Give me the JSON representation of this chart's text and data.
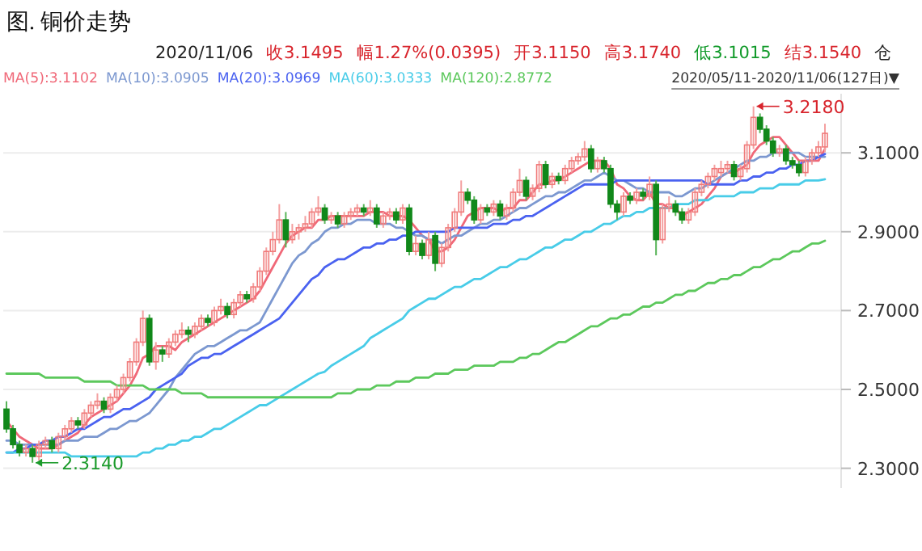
{
  "chart_data": {
    "type": "candlestick",
    "title": "图. 铜价走势",
    "annotations": [
      "2020/11/06",
      "收3.1495",
      "幅1.27%(0.0395)",
      "开3.1150",
      "高3.1740",
      "低3.1015",
      "结3.1540",
      "仓",
      "2020/05/11-2020/11/06(127日)▼",
      {
        "text": "2.3140",
        "y": 2.314
      },
      "3.2180"
    ],
    "categories": [
      null,
      null,
      null,
      null,
      null,
      null,
      null,
      null,
      null,
      null,
      null,
      null,
      null,
      null,
      null,
      null,
      null,
      null,
      null,
      null,
      null,
      null,
      null,
      null,
      null,
      null,
      null,
      null,
      null,
      null,
      null,
      null,
      null,
      null,
      null,
      null,
      null,
      null,
      null,
      null,
      null,
      null,
      null,
      null,
      null,
      null,
      null,
      null,
      null,
      null,
      null,
      null,
      null,
      null,
      null,
      null,
      null,
      null,
      null,
      null,
      null,
      null,
      null,
      null,
      null,
      null,
      null,
      null,
      null,
      null,
      null,
      null,
      null,
      null,
      null,
      null,
      null,
      null,
      null,
      null,
      null,
      null,
      null,
      null,
      null,
      null,
      null,
      null,
      null,
      null,
      null,
      null,
      null,
      null,
      null,
      null,
      null,
      null,
      null,
      null,
      null,
      null,
      null,
      null,
      null,
      null,
      null,
      null,
      null,
      null,
      null,
      null,
      null,
      null,
      null,
      null,
      null,
      null,
      null,
      null,
      null,
      null,
      null,
      null,
      null,
      null,
      null
    ],
    "ohlc": [
      [
        2.45,
        2.47,
        2.39,
        2.4
      ],
      [
        2.4,
        2.41,
        2.35,
        2.36
      ],
      [
        2.36,
        2.37,
        2.33,
        2.34
      ],
      [
        2.34,
        2.36,
        2.33,
        2.35
      ],
      [
        2.35,
        2.36,
        2.314,
        2.33
      ],
      [
        2.33,
        2.37,
        2.32,
        2.36
      ],
      [
        2.36,
        2.38,
        2.35,
        2.37
      ],
      [
        2.37,
        2.38,
        2.34,
        2.35
      ],
      [
        2.35,
        2.39,
        2.34,
        2.38
      ],
      [
        2.38,
        2.41,
        2.37,
        2.4
      ],
      [
        2.4,
        2.43,
        2.39,
        2.42
      ],
      [
        2.42,
        2.43,
        2.4,
        2.41
      ],
      [
        2.41,
        2.45,
        2.4,
        2.44
      ],
      [
        2.44,
        2.47,
        2.43,
        2.46
      ],
      [
        2.46,
        2.49,
        2.45,
        2.47
      ],
      [
        2.47,
        2.48,
        2.44,
        2.45
      ],
      [
        2.45,
        2.49,
        2.44,
        2.48
      ],
      [
        2.48,
        2.51,
        2.47,
        2.5
      ],
      [
        2.5,
        2.54,
        2.49,
        2.53
      ],
      [
        2.53,
        2.58,
        2.52,
        2.57
      ],
      [
        2.57,
        2.63,
        2.56,
        2.62
      ],
      [
        2.62,
        2.7,
        2.61,
        2.68
      ],
      [
        2.68,
        2.69,
        2.56,
        2.57
      ],
      [
        2.57,
        2.62,
        2.55,
        2.6
      ],
      [
        2.6,
        2.61,
        2.57,
        2.59
      ],
      [
        2.59,
        2.63,
        2.58,
        2.62
      ],
      [
        2.62,
        2.65,
        2.61,
        2.64
      ],
      [
        2.64,
        2.67,
        2.63,
        2.65
      ],
      [
        2.65,
        2.66,
        2.62,
        2.64
      ],
      [
        2.64,
        2.67,
        2.63,
        2.66
      ],
      [
        2.66,
        2.69,
        2.65,
        2.68
      ],
      [
        2.68,
        2.69,
        2.66,
        2.67
      ],
      [
        2.67,
        2.71,
        2.66,
        2.7
      ],
      [
        2.7,
        2.73,
        2.69,
        2.71
      ],
      [
        2.71,
        2.72,
        2.68,
        2.69
      ],
      [
        2.69,
        2.73,
        2.68,
        2.72
      ],
      [
        2.72,
        2.75,
        2.71,
        2.74
      ],
      [
        2.74,
        2.75,
        2.72,
        2.73
      ],
      [
        2.73,
        2.77,
        2.72,
        2.76
      ],
      [
        2.76,
        2.81,
        2.75,
        2.8
      ],
      [
        2.8,
        2.86,
        2.79,
        2.85
      ],
      [
        2.85,
        2.9,
        2.84,
        2.88
      ],
      [
        2.88,
        2.97,
        2.87,
        2.93
      ],
      [
        2.93,
        2.95,
        2.86,
        2.88
      ],
      [
        2.88,
        2.92,
        2.87,
        2.9
      ],
      [
        2.9,
        2.92,
        2.88,
        2.91
      ],
      [
        2.91,
        2.94,
        2.9,
        2.92
      ],
      [
        2.92,
        2.96,
        2.91,
        2.95
      ],
      [
        2.95,
        2.99,
        2.94,
        2.96
      ],
      [
        2.96,
        2.97,
        2.92,
        2.93
      ],
      [
        2.93,
        2.95,
        2.92,
        2.94
      ],
      [
        2.94,
        2.95,
        2.91,
        2.92
      ],
      [
        2.92,
        2.95,
        2.91,
        2.94
      ],
      [
        2.94,
        2.96,
        2.93,
        2.95
      ],
      [
        2.95,
        2.97,
        2.94,
        2.96
      ],
      [
        2.96,
        2.97,
        2.94,
        2.95
      ],
      [
        2.95,
        2.98,
        2.94,
        2.96
      ],
      [
        2.96,
        2.97,
        2.91,
        2.92
      ],
      [
        2.92,
        2.95,
        2.91,
        2.94
      ],
      [
        2.94,
        2.96,
        2.93,
        2.95
      ],
      [
        2.95,
        2.96,
        2.92,
        2.93
      ],
      [
        2.93,
        2.97,
        2.92,
        2.96
      ],
      [
        2.96,
        2.97,
        2.84,
        2.85
      ],
      [
        2.85,
        2.89,
        2.84,
        2.87
      ],
      [
        2.87,
        2.88,
        2.83,
        2.84
      ],
      [
        2.84,
        2.9,
        2.83,
        2.88
      ],
      [
        2.89,
        2.9,
        2.8,
        2.82
      ],
      [
        2.82,
        2.87,
        2.81,
        2.86
      ],
      [
        2.86,
        2.92,
        2.85,
        2.91
      ],
      [
        2.91,
        2.96,
        2.9,
        2.95
      ],
      [
        2.95,
        3.03,
        2.94,
        3.0
      ],
      [
        3.0,
        3.01,
        2.97,
        2.98
      ],
      [
        2.98,
        2.99,
        2.92,
        2.93
      ],
      [
        2.93,
        2.97,
        2.92,
        2.96
      ],
      [
        2.96,
        2.97,
        2.94,
        2.95
      ],
      [
        2.95,
        2.98,
        2.94,
        2.97
      ],
      [
        2.97,
        2.98,
        2.93,
        2.94
      ],
      [
        2.94,
        2.97,
        2.93,
        2.96
      ],
      [
        2.96,
        3.01,
        2.95,
        3.0
      ],
      [
        3.0,
        3.06,
        2.99,
        3.03
      ],
      [
        3.03,
        3.04,
        2.98,
        2.99
      ],
      [
        2.99,
        3.02,
        2.98,
        3.01
      ],
      [
        3.01,
        3.08,
        3.0,
        3.07
      ],
      [
        3.07,
        3.08,
        3.01,
        3.02
      ],
      [
        3.02,
        3.05,
        3.01,
        3.04
      ],
      [
        3.04,
        3.05,
        3.02,
        3.03
      ],
      [
        3.03,
        3.07,
        3.02,
        3.06
      ],
      [
        3.06,
        3.09,
        3.05,
        3.08
      ],
      [
        3.08,
        3.1,
        3.07,
        3.09
      ],
      [
        3.09,
        3.13,
        3.08,
        3.11
      ],
      [
        3.11,
        3.12,
        3.05,
        3.06
      ],
      [
        3.06,
        3.09,
        3.05,
        3.08
      ],
      [
        3.08,
        3.09,
        3.05,
        3.06
      ],
      [
        3.06,
        3.07,
        2.96,
        2.97
      ],
      [
        2.97,
        2.98,
        2.93,
        2.95
      ],
      [
        2.95,
        3.0,
        2.94,
        2.99
      ],
      [
        2.99,
        3.0,
        2.97,
        2.98
      ],
      [
        2.98,
        3.01,
        2.97,
        3.0
      ],
      [
        3.0,
        3.01,
        2.98,
        2.99
      ],
      [
        2.99,
        3.04,
        2.98,
        3.02
      ],
      [
        3.02,
        3.03,
        2.84,
        2.88
      ],
      [
        2.88,
        2.97,
        2.87,
        2.96
      ],
      [
        2.96,
        2.99,
        2.95,
        2.97
      ],
      [
        2.97,
        2.98,
        2.94,
        2.95
      ],
      [
        2.95,
        2.96,
        2.92,
        2.93
      ],
      [
        2.93,
        2.96,
        2.92,
        2.95
      ],
      [
        2.95,
        3.01,
        2.94,
        3.0
      ],
      [
        3.0,
        3.03,
        2.99,
        3.02
      ],
      [
        3.02,
        3.05,
        3.01,
        3.04
      ],
      [
        3.04,
        3.07,
        3.03,
        3.06
      ],
      [
        3.05,
        3.08,
        3.04,
        3.06
      ],
      [
        3.06,
        3.08,
        3.05,
        3.07
      ],
      [
        3.07,
        3.08,
        3.03,
        3.04
      ],
      [
        3.04,
        3.07,
        3.03,
        3.06
      ],
      [
        3.06,
        3.13,
        3.05,
        3.12
      ],
      [
        3.12,
        3.218,
        3.11,
        3.19
      ],
      [
        3.19,
        3.2,
        3.15,
        3.16
      ],
      [
        3.16,
        3.17,
        3.12,
        3.13
      ],
      [
        3.13,
        3.14,
        3.09,
        3.1
      ],
      [
        3.1,
        3.12,
        3.09,
        3.11
      ],
      [
        3.11,
        3.12,
        3.07,
        3.08
      ],
      [
        3.08,
        3.09,
        3.06,
        3.07
      ],
      [
        3.07,
        3.08,
        3.04,
        3.05
      ],
      [
        3.05,
        3.09,
        3.04,
        3.08
      ],
      [
        3.08,
        3.11,
        3.07,
        3.1
      ],
      [
        3.1,
        3.13,
        3.09,
        3.115
      ],
      [
        3.115,
        3.174,
        3.1015,
        3.1495
      ]
    ],
    "series": [
      {
        "type": "line",
        "name": "MA(5):3.1102",
        "color": "#f06878",
        "values": [
          2.42,
          2.4,
          2.38,
          2.37,
          2.36,
          2.35,
          2.35,
          2.35,
          2.36,
          2.37,
          2.38,
          2.39,
          2.41,
          2.43,
          2.44,
          2.45,
          2.46,
          2.47,
          2.49,
          2.51,
          2.54,
          2.58,
          2.59,
          2.61,
          2.61,
          2.61,
          2.6,
          2.62,
          2.63,
          2.64,
          2.65,
          2.66,
          2.67,
          2.68,
          2.69,
          2.7,
          2.71,
          2.72,
          2.73,
          2.75,
          2.78,
          2.81,
          2.84,
          2.87,
          2.89,
          2.9,
          2.91,
          2.91,
          2.93,
          2.93,
          2.94,
          2.94,
          2.94,
          2.94,
          2.94,
          2.94,
          2.95,
          2.95,
          2.95,
          2.94,
          2.94,
          2.94,
          2.93,
          2.91,
          2.89,
          2.88,
          2.85,
          2.85,
          2.86,
          2.88,
          2.91,
          2.94,
          2.95,
          2.96,
          2.96,
          2.96,
          2.95,
          2.96,
          2.96,
          2.98,
          2.98,
          3.0,
          3.02,
          3.02,
          3.03,
          3.03,
          3.04,
          3.05,
          3.06,
          3.07,
          3.08,
          3.08,
          3.08,
          3.06,
          3.02,
          3.01,
          2.99,
          2.98,
          2.98,
          3.0,
          2.97,
          2.97,
          2.96,
          2.96,
          2.94,
          2.95,
          2.96,
          2.97,
          2.99,
          3.01,
          3.04,
          3.05,
          3.05,
          3.06,
          3.07,
          3.1,
          3.12,
          3.13,
          3.14,
          3.14,
          3.12,
          3.1,
          3.08,
          3.08,
          3.08,
          3.08,
          3.11
        ]
      },
      {
        "type": "line",
        "name": "MA(10):3.0905",
        "color": "#7c98d0",
        "values": [
          2.37,
          2.37,
          2.36,
          2.36,
          2.36,
          2.36,
          2.36,
          2.36,
          2.36,
          2.37,
          2.37,
          2.37,
          2.38,
          2.38,
          2.38,
          2.39,
          2.4,
          2.4,
          2.41,
          2.42,
          2.42,
          2.43,
          2.44,
          2.46,
          2.48,
          2.5,
          2.53,
          2.55,
          2.57,
          2.59,
          2.6,
          2.61,
          2.61,
          2.62,
          2.63,
          2.64,
          2.65,
          2.65,
          2.66,
          2.67,
          2.7,
          2.73,
          2.76,
          2.79,
          2.82,
          2.84,
          2.85,
          2.87,
          2.88,
          2.9,
          2.91,
          2.91,
          2.92,
          2.92,
          2.93,
          2.93,
          2.93,
          2.92,
          2.92,
          2.92,
          2.91,
          2.91,
          2.9,
          2.89,
          2.89,
          2.88,
          2.88,
          2.87,
          2.88,
          2.89,
          2.89,
          2.9,
          2.91,
          2.92,
          2.92,
          2.93,
          2.93,
          2.94,
          2.95,
          2.96,
          2.96,
          2.97,
          2.98,
          2.99,
          2.99,
          3.0,
          3.0,
          3.01,
          3.02,
          3.03,
          3.03,
          3.04,
          3.05,
          3.04,
          3.03,
          3.03,
          3.02,
          3.01,
          3.01,
          3.0,
          3.0,
          3.0,
          3.0,
          2.99,
          2.99,
          3.0,
          3.01,
          3.01,
          3.02,
          3.03,
          3.04,
          3.05,
          3.06,
          3.07,
          3.08,
          3.08,
          3.09,
          3.09,
          3.1,
          3.1,
          3.1,
          3.1,
          3.1,
          3.09,
          3.09,
          3.09,
          3.09
        ]
      },
      {
        "type": "line",
        "name": "MA(20):3.0969",
        "color": "#4a62f0",
        "values": [
          2.34,
          2.34,
          2.35,
          2.35,
          2.36,
          2.36,
          2.37,
          2.37,
          2.38,
          2.38,
          2.39,
          2.4,
          2.4,
          2.41,
          2.42,
          2.43,
          2.43,
          2.44,
          2.45,
          2.45,
          2.46,
          2.47,
          2.48,
          2.5,
          2.51,
          2.52,
          2.53,
          2.54,
          2.56,
          2.57,
          2.58,
          2.58,
          2.59,
          2.59,
          2.6,
          2.61,
          2.62,
          2.63,
          2.64,
          2.65,
          2.66,
          2.67,
          2.68,
          2.7,
          2.72,
          2.74,
          2.76,
          2.78,
          2.79,
          2.81,
          2.82,
          2.83,
          2.83,
          2.84,
          2.85,
          2.86,
          2.86,
          2.87,
          2.87,
          2.88,
          2.88,
          2.89,
          2.89,
          2.9,
          2.9,
          2.9,
          2.9,
          2.9,
          2.9,
          2.91,
          2.91,
          2.91,
          2.91,
          2.91,
          2.91,
          2.92,
          2.92,
          2.92,
          2.93,
          2.93,
          2.94,
          2.94,
          2.95,
          2.96,
          2.97,
          2.98,
          2.99,
          3.0,
          3.01,
          3.02,
          3.02,
          3.02,
          3.02,
          3.02,
          3.03,
          3.03,
          3.03,
          3.03,
          3.03,
          3.03,
          3.03,
          3.03,
          3.03,
          3.03,
          3.03,
          3.03,
          3.03,
          3.03,
          3.02,
          3.02,
          3.02,
          3.02,
          3.02,
          3.03,
          3.03,
          3.04,
          3.04,
          3.05,
          3.05,
          3.06,
          3.06,
          3.07,
          3.07,
          3.08,
          3.08,
          3.09,
          3.097
        ]
      },
      {
        "type": "line",
        "name": "MA(60):3.0333",
        "color": "#48cce8",
        "values": [
          2.34,
          2.34,
          2.34,
          2.34,
          2.34,
          2.34,
          2.34,
          2.34,
          2.34,
          2.34,
          2.33,
          2.33,
          2.33,
          2.33,
          2.33,
          2.33,
          2.33,
          2.33,
          2.33,
          2.33,
          2.33,
          2.34,
          2.34,
          2.35,
          2.35,
          2.36,
          2.36,
          2.37,
          2.37,
          2.38,
          2.38,
          2.39,
          2.4,
          2.4,
          2.41,
          2.42,
          2.43,
          2.44,
          2.45,
          2.46,
          2.46,
          2.47,
          2.48,
          2.49,
          2.5,
          2.51,
          2.52,
          2.53,
          2.54,
          2.545,
          2.56,
          2.57,
          2.58,
          2.59,
          2.6,
          2.61,
          2.63,
          2.64,
          2.65,
          2.66,
          2.67,
          2.68,
          2.7,
          2.71,
          2.72,
          2.73,
          2.73,
          2.74,
          2.75,
          2.76,
          2.76,
          2.77,
          2.78,
          2.78,
          2.79,
          2.8,
          2.81,
          2.81,
          2.82,
          2.83,
          2.83,
          2.84,
          2.85,
          2.86,
          2.86,
          2.87,
          2.88,
          2.88,
          2.89,
          2.9,
          2.9,
          2.91,
          2.92,
          2.92,
          2.93,
          2.94,
          2.94,
          2.95,
          2.95,
          2.96,
          2.96,
          2.96,
          2.96,
          2.97,
          2.97,
          2.97,
          2.98,
          2.98,
          2.98,
          2.99,
          2.99,
          2.99,
          2.99,
          3.0,
          3.0,
          3.0,
          3.01,
          3.01,
          3.01,
          3.02,
          3.02,
          3.02,
          3.02,
          3.03,
          3.03,
          3.03,
          3.033
        ]
      },
      {
        "type": "line",
        "name": "MA(120):2.8772",
        "color": "#5cc85c",
        "values": [
          2.54,
          2.54,
          2.54,
          2.54,
          2.54,
          2.54,
          2.53,
          2.53,
          2.53,
          2.53,
          2.53,
          2.53,
          2.52,
          2.52,
          2.52,
          2.52,
          2.52,
          2.51,
          2.51,
          2.51,
          2.51,
          2.51,
          2.5,
          2.5,
          2.5,
          2.5,
          2.5,
          2.49,
          2.49,
          2.49,
          2.49,
          2.48,
          2.48,
          2.48,
          2.48,
          2.48,
          2.48,
          2.48,
          2.48,
          2.48,
          2.48,
          2.48,
          2.48,
          2.48,
          2.48,
          2.48,
          2.48,
          2.48,
          2.48,
          2.48,
          2.48,
          2.49,
          2.49,
          2.49,
          2.5,
          2.5,
          2.5,
          2.51,
          2.51,
          2.51,
          2.52,
          2.52,
          2.52,
          2.53,
          2.53,
          2.53,
          2.54,
          2.54,
          2.54,
          2.55,
          2.55,
          2.55,
          2.56,
          2.56,
          2.56,
          2.56,
          2.57,
          2.57,
          2.57,
          2.58,
          2.58,
          2.59,
          2.59,
          2.6,
          2.61,
          2.62,
          2.62,
          2.63,
          2.64,
          2.65,
          2.66,
          2.66,
          2.67,
          2.68,
          2.68,
          2.69,
          2.69,
          2.7,
          2.71,
          2.71,
          2.72,
          2.72,
          2.73,
          2.74,
          2.74,
          2.75,
          2.75,
          2.76,
          2.77,
          2.77,
          2.78,
          2.78,
          2.79,
          2.79,
          2.8,
          2.81,
          2.81,
          2.82,
          2.83,
          2.83,
          2.84,
          2.85,
          2.85,
          2.86,
          2.87,
          2.87,
          2.877
        ]
      }
    ],
    "ylim": [
      2.25,
      3.25
    ],
    "yticks": [
      {
        "value": 2.3,
        "label": "2.3000"
      },
      {
        "value": 2.5,
        "label": "2.5000"
      },
      {
        "value": 2.7,
        "label": "2.7000"
      },
      {
        "value": 2.9,
        "label": "2.9000"
      },
      {
        "value": 3.1,
        "label": "3.1000"
      }
    ],
    "grid": "y",
    "legend": "top left",
    "tick_labels": "y"
  }
}
